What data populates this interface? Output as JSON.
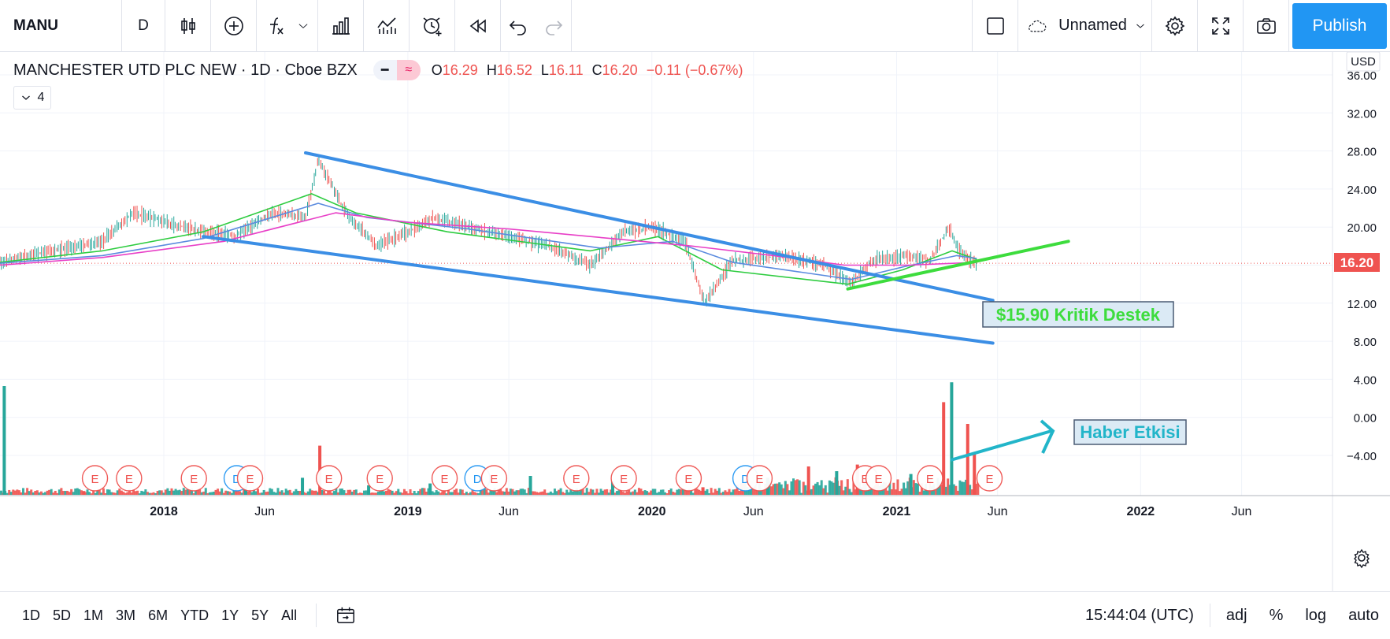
{
  "toolbar": {
    "symbol": "MANU",
    "interval": "D",
    "layout_name": "Unnamed",
    "publish_label": "Publish",
    "icons": [
      "candles-icon",
      "add-compare-icon",
      "indicators-icon",
      "chevron-down-icon",
      "templates-icon",
      "replay-chart-icon",
      "alert-icon",
      "replay-icon",
      "undo-icon",
      "redo-icon",
      "square-icon",
      "cloud-icon",
      "settings-icon",
      "fullscreen-icon",
      "camera-icon"
    ]
  },
  "legend": {
    "title": "MANCHESTER UTD PLC NEW · 1D · Cboe BZX",
    "ohlc": [
      {
        "k": "O",
        "v": "16.29"
      },
      {
        "k": "H",
        "v": "16.52"
      },
      {
        "k": "L",
        "v": "16.11"
      },
      {
        "k": "C",
        "v": "16.20"
      }
    ],
    "change": "−0.11 (−0.67%)",
    "collapse_count": "4",
    "collapse_icon": "chevron-down-icon"
  },
  "price_axis": {
    "currency": "USD",
    "current_price_label": "16.20"
  },
  "annotations": {
    "support_label": "$15.90 Kritik Destek",
    "news_label": "Haber Etkisi"
  },
  "bottom": {
    "ranges": [
      "1D",
      "5D",
      "1M",
      "3M",
      "6M",
      "YTD",
      "1Y",
      "5Y",
      "All"
    ],
    "clock": "15:44:04 (UTC)",
    "options": [
      "adj",
      "%",
      "log",
      "auto"
    ]
  },
  "colors": {
    "up": "#26a69a",
    "down": "#ef5350",
    "ma_fast": "#2ecc40",
    "ma_mid": "#5b8bdf",
    "ma_slow": "#e83fc7",
    "channel": "#3b8ee5",
    "support": "#3ddc3d",
    "news_arrow": "#22b5c9"
  },
  "chart_data": {
    "type": "line",
    "y_ticks": [
      "36.00",
      "32.00",
      "28.00",
      "24.00",
      "20.00",
      "16.00",
      "12.00",
      "8.00",
      "4.00",
      "0.00",
      "−4.00"
    ],
    "ylim": [
      -8,
      36
    ],
    "x_ticks": [
      "2018",
      "Jun",
      "2019",
      "Jun",
      "2020",
      "Jun",
      "2021",
      "Jun",
      "2022",
      "Jun"
    ],
    "x_tick_dates": [
      "2018-01-01",
      "2018-06-01",
      "2019-01-01",
      "2019-06-01",
      "2020-01-01",
      "2020-06-01",
      "2021-01-01",
      "2021-06-01",
      "2022-01-01",
      "2022-06-01"
    ],
    "xlim": [
      "2017-05-01",
      "2022-10-15"
    ],
    "price_series": {
      "name": "MANU",
      "x": [
        "2017-05-01",
        "2017-07-15",
        "2017-10-01",
        "2017-11-15",
        "2018-02-01",
        "2018-04-15",
        "2018-06-15",
        "2018-08-01",
        "2018-08-20",
        "2018-10-01",
        "2018-11-15",
        "2019-01-01",
        "2019-02-10",
        "2019-05-01",
        "2019-08-01",
        "2019-10-01",
        "2019-11-20",
        "2020-01-01",
        "2020-02-20",
        "2020-03-20",
        "2020-05-01",
        "2020-07-15",
        "2020-09-15",
        "2020-10-25",
        "2020-11-25",
        "2021-01-15",
        "2021-02-20",
        "2021-03-20",
        "2021-04-05",
        "2021-04-20",
        "2021-05-01"
      ],
      "values": [
        16.3,
        17.5,
        18.5,
        21.5,
        20.0,
        19.0,
        21.5,
        21.0,
        27.0,
        21.5,
        18.0,
        19.5,
        21.0,
        19.5,
        18.0,
        16.0,
        19.5,
        20.0,
        18.5,
        12.0,
        16.5,
        17.0,
        16.0,
        14.0,
        16.5,
        17.0,
        16.5,
        20.0,
        17.5,
        16.5,
        16.2
      ]
    },
    "ma_series": [
      {
        "x": [
          "2017-05-01",
          "2017-10-01",
          "2018-03-01",
          "2018-08-10",
          "2018-10-15",
          "2019-03-01",
          "2019-10-01",
          "2020-01-10",
          "2020-04-15",
          "2020-10-20",
          "2021-01-10",
          "2021-03-25",
          "2021-05-01"
        ],
        "values": [
          16.3,
          17.5,
          19.5,
          23.5,
          21.5,
          19.5,
          17.5,
          19.0,
          15.5,
          14.0,
          15.5,
          17.5,
          16.6
        ]
      },
      {
        "x": [
          "2017-05-01",
          "2017-10-01",
          "2018-03-01",
          "2018-08-20",
          "2018-11-01",
          "2019-04-01",
          "2019-10-15",
          "2020-02-01",
          "2020-05-01",
          "2020-10-25",
          "2021-01-10",
          "2021-04-01",
          "2021-05-01"
        ],
        "values": [
          16.2,
          17.0,
          18.8,
          22.5,
          21.0,
          19.8,
          17.8,
          18.5,
          16.3,
          14.5,
          15.8,
          17.0,
          16.7
        ]
      },
      {
        "x": [
          "2017-05-01",
          "2017-10-01",
          "2018-04-01",
          "2018-09-15",
          "2019-01-01",
          "2019-06-01",
          "2019-11-01",
          "2020-03-01",
          "2020-07-01",
          "2020-10-15",
          "2021-01-20",
          "2021-05-01"
        ],
        "values": [
          16.0,
          16.8,
          18.5,
          21.5,
          20.5,
          19.8,
          18.8,
          18.0,
          17.0,
          16.0,
          16.0,
          16.3
        ]
      }
    ],
    "volume": {
      "x": [
        "2017-05-05",
        "2017-09-01",
        "2018-05-01",
        "2018-07-25",
        "2018-08-20",
        "2018-11-01",
        "2019-02-01",
        "2019-07-01",
        "2019-11-01",
        "2020-03-15",
        "2020-06-20",
        "2020-08-20",
        "2020-10-01",
        "2020-11-01",
        "2021-01-20",
        "2021-03-10",
        "2021-03-22",
        "2021-04-15",
        "2021-04-25"
      ],
      "values": [
        11.5,
        0.4,
        1.5,
        1.8,
        5.2,
        1.0,
        1.2,
        2.0,
        1.4,
        0.8,
        1.8,
        3.0,
        2.5,
        3.2,
        2.2,
        9.8,
        11.9,
        7.5,
        4.5
      ],
      "up": [
        true,
        false,
        true,
        true,
        false,
        true,
        true,
        true,
        true,
        false,
        true,
        false,
        true,
        false,
        true,
        false,
        true,
        false,
        false
      ]
    },
    "events": [
      {
        "date": "2017-09-20",
        "label": "E"
      },
      {
        "date": "2017-11-10",
        "label": "E"
      },
      {
        "date": "2018-02-15",
        "label": "E"
      },
      {
        "date": "2018-04-20",
        "label": "D"
      },
      {
        "date": "2018-05-10",
        "label": "E"
      },
      {
        "date": "2018-09-05",
        "label": "E"
      },
      {
        "date": "2018-11-20",
        "label": "E"
      },
      {
        "date": "2019-02-25",
        "label": "E"
      },
      {
        "date": "2019-04-15",
        "label": "D"
      },
      {
        "date": "2019-05-10",
        "label": "E"
      },
      {
        "date": "2019-09-10",
        "label": "E"
      },
      {
        "date": "2019-11-20",
        "label": "E"
      },
      {
        "date": "2020-02-25",
        "label": "E"
      },
      {
        "date": "2020-05-20",
        "label": "D"
      },
      {
        "date": "2020-06-10",
        "label": "E"
      },
      {
        "date": "2020-11-15",
        "label": "E"
      },
      {
        "date": "2020-12-05",
        "label": "E"
      },
      {
        "date": "2021-02-20",
        "label": "E"
      },
      {
        "date": "2021-05-20",
        "label": "E"
      }
    ],
    "trendlines": [
      {
        "name": "upper-channel",
        "x": [
          "2018-08-01",
          "2021-05-25"
        ],
        "values": [
          27.8,
          12.3
        ]
      },
      {
        "name": "lower-channel",
        "x": [
          "2018-03-01",
          "2021-05-25"
        ],
        "values": [
          19.0,
          7.8
        ]
      },
      {
        "name": "support-line",
        "x": [
          "2020-10-20",
          "2021-09-15"
        ],
        "values": [
          13.5,
          18.5
        ]
      }
    ]
  }
}
